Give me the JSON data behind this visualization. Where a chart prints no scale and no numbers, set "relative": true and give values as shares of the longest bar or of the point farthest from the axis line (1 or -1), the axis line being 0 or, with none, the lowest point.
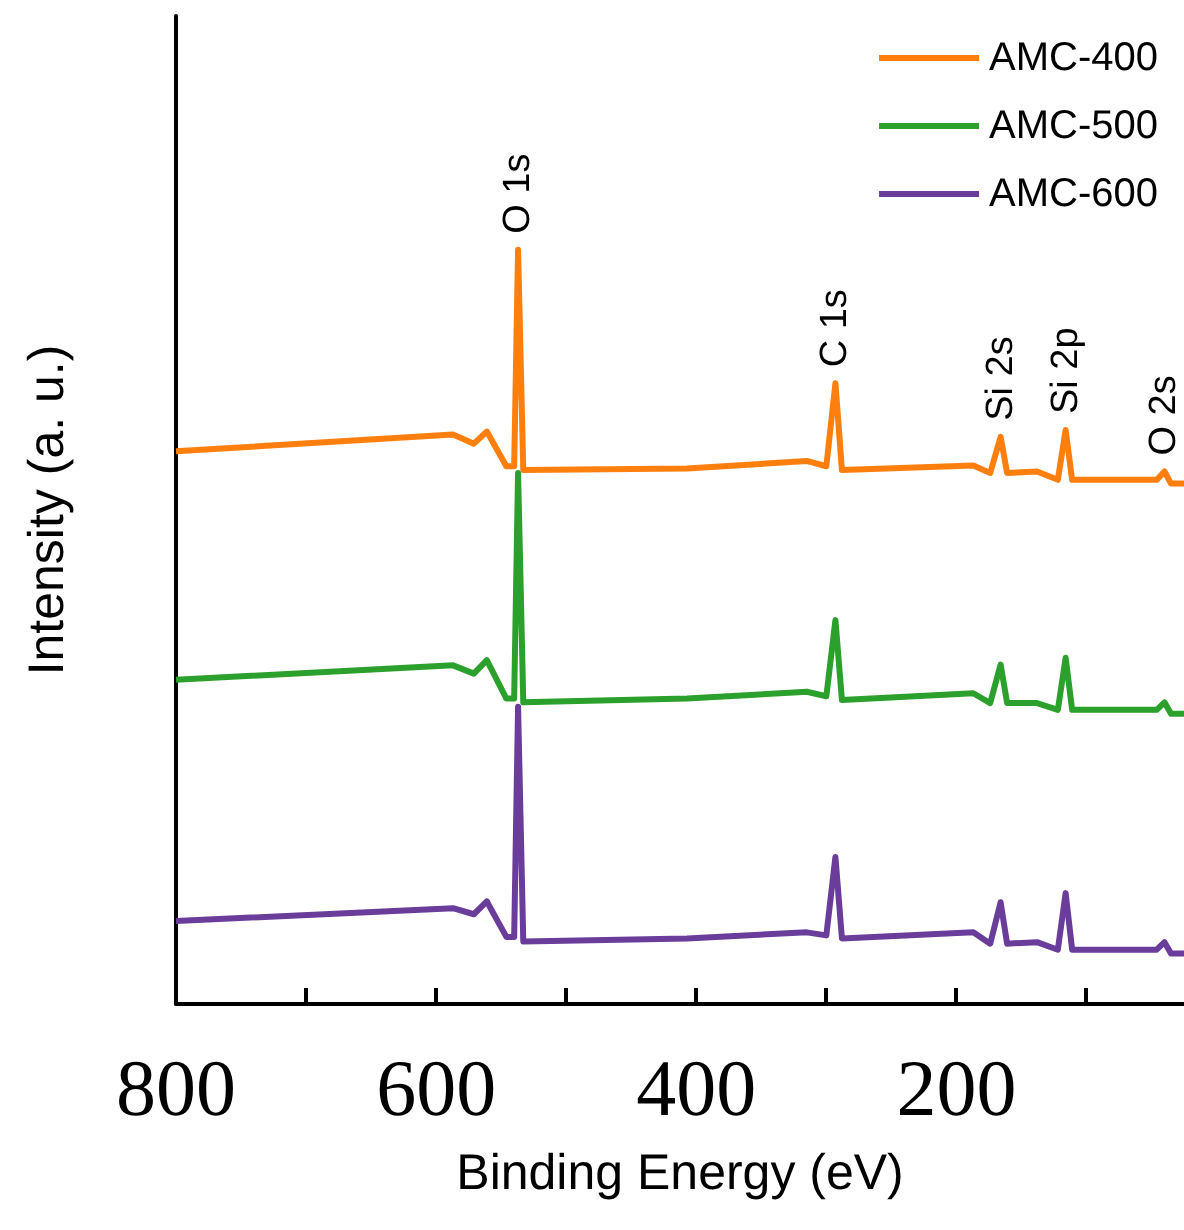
{
  "chart_data": {
    "type": "line",
    "relative": true,
    "xlabel": "Binding Energy (eV)",
    "ylabel": "Intensity (a. u.)",
    "x": [
      800,
      587,
      571,
      561,
      546,
      540,
      537,
      533,
      407,
      315,
      300,
      293,
      288,
      187,
      174,
      166,
      161,
      138,
      122,
      116,
      111,
      46,
      40,
      35,
      25
    ],
    "xlim": [
      800,
      25
    ],
    "xticks": [
      800,
      {
        "value": 700,
        "label": null
      },
      600,
      {
        "value": 500,
        "label": null
      },
      400,
      {
        "value": 300,
        "label": null
      },
      200,
      {
        "value": 100,
        "label": null
      }
    ],
    "series": [
      {
        "name": "AMC-400",
        "color": "#ff7f0e",
        "values": [
          0.733,
          0.755,
          0.743,
          0.759,
          0.713,
          0.713,
          1.0,
          0.708,
          0.71,
          0.72,
          0.713,
          0.823,
          0.708,
          0.714,
          0.704,
          0.752,
          0.704,
          0.706,
          0.695,
          0.761,
          0.695,
          0.695,
          0.706,
          0.69,
          0.69
        ]
      },
      {
        "name": "AMC-500",
        "color": "#2ca02c",
        "values": [
          0.43,
          0.449,
          0.438,
          0.456,
          0.405,
          0.405,
          0.704,
          0.4,
          0.405,
          0.414,
          0.408,
          0.509,
          0.403,
          0.412,
          0.399,
          0.45,
          0.399,
          0.399,
          0.39,
          0.459,
          0.39,
          0.39,
          0.4,
          0.385,
          0.385
        ]
      },
      {
        "name": "AMC-600",
        "color": "#6a3d9a",
        "values": [
          0.11,
          0.127,
          0.119,
          0.136,
          0.089,
          0.089,
          0.394,
          0.083,
          0.087,
          0.095,
          0.091,
          0.195,
          0.087,
          0.095,
          0.08,
          0.135,
          0.08,
          0.082,
          0.072,
          0.147,
          0.072,
          0.072,
          0.082,
          0.067,
          0.067
        ]
      }
    ],
    "annotations": [
      {
        "text": "O 1s",
        "x": 537,
        "y": 1.0
      },
      {
        "text": "C 1s",
        "x": 293,
        "y": 0.823
      },
      {
        "text": "Si 2s",
        "x": 166,
        "y": 0.752
      },
      {
        "text": "Si 2p",
        "x": 116,
        "y": 0.761
      },
      {
        "text": "O 2s",
        "x": 40,
        "y": 0.706
      }
    ],
    "legend": "top right",
    "grid": false,
    "marker": "none",
    "line_style": "solid"
  }
}
